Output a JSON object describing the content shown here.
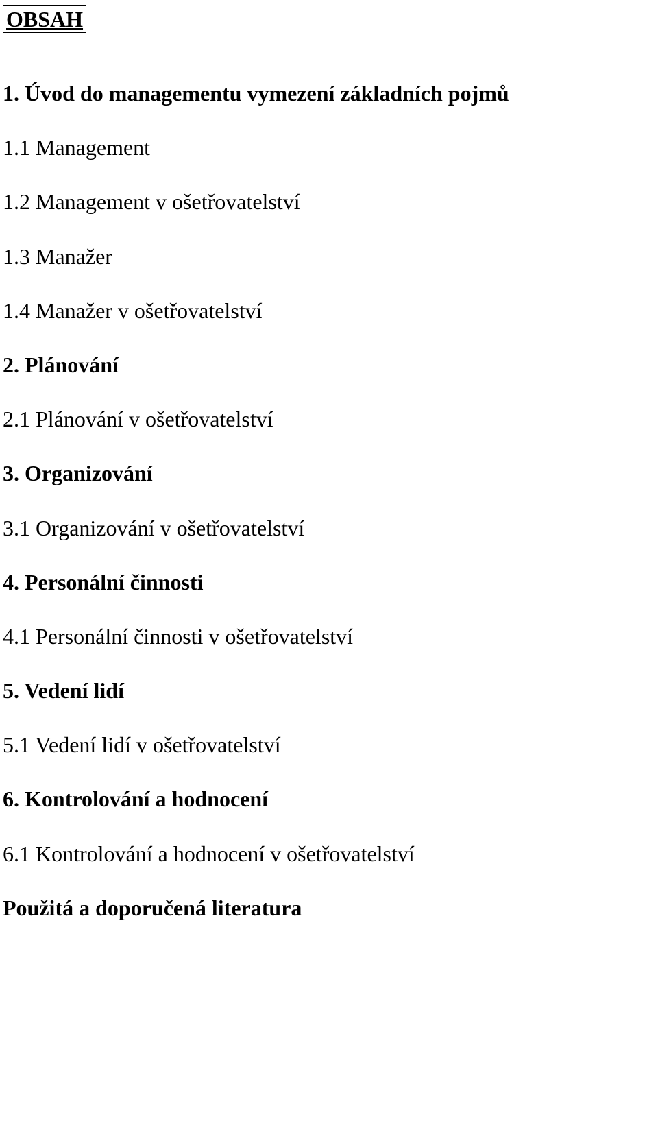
{
  "document": {
    "title": "OBSAH",
    "background_color": "#ffffff",
    "text_color": "#000000",
    "font_family": "Times New Roman",
    "title_fontsize": 32,
    "heading_fontsize": 32,
    "body_fontsize": 32,
    "sections": [
      {
        "heading": "1. Úvod do managementu vymezení základních pojmů",
        "subsections": [
          "1.1 Management",
          "1.2 Management v ošetřovatelství",
          "1.3 Manažer",
          "1.4 Manažer v ošetřovatelství"
        ]
      },
      {
        "heading": "2. Plánování",
        "subsections": [
          "2.1 Plánování v ošetřovatelství"
        ]
      },
      {
        "heading": "3. Organizování",
        "subsections": [
          "3.1 Organizování v ošetřovatelství"
        ]
      },
      {
        "heading": "4. Personální činnosti",
        "subsections": [
          "4.1 Personální činnosti v ošetřovatelství"
        ]
      },
      {
        "heading": "5. Vedení lidí",
        "subsections": [
          "5.1 Vedení lidí v ošetřovatelství"
        ]
      },
      {
        "heading": "6. Kontrolování a hodnocení",
        "subsections": [
          "6.1 Kontrolování a hodnocení v ošetřovatelství"
        ]
      }
    ],
    "footer": "Použitá a doporučená literatura"
  }
}
